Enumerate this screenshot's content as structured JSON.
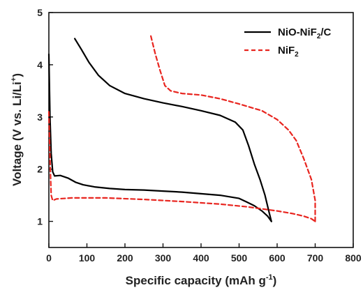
{
  "chart_data": {
    "type": "line",
    "title": "",
    "xlabel": "Specific capacity (mAh g^-1)",
    "ylabel": "Voltage (V vs. Li/Li^+)",
    "xlim": [
      0,
      800
    ],
    "ylim": [
      0.5,
      5
    ],
    "x_ticks": [
      0,
      100,
      200,
      300,
      400,
      500,
      600,
      700,
      800
    ],
    "y_ticks": [
      1,
      2,
      3,
      4,
      5
    ],
    "grid": false,
    "legend_position": "top-right",
    "series": [
      {
        "name": "NiO-NiF2/C",
        "color": "#000000",
        "dash": "solid",
        "segments": [
          [
            [
              0,
              4.2
            ],
            [
              3,
              3.0
            ],
            [
              6,
              2.3
            ],
            [
              10,
              1.95
            ],
            [
              15,
              1.87
            ],
            [
              30,
              1.88
            ],
            [
              50,
              1.83
            ],
            [
              70,
              1.75
            ],
            [
              90,
              1.7
            ],
            [
              120,
              1.66
            ],
            [
              160,
              1.63
            ],
            [
              200,
              1.61
            ],
            [
              250,
              1.6
            ],
            [
              300,
              1.58
            ],
            [
              350,
              1.56
            ],
            [
              400,
              1.53
            ],
            [
              450,
              1.5
            ],
            [
              500,
              1.44
            ],
            [
              520,
              1.37
            ],
            [
              540,
              1.3
            ],
            [
              560,
              1.2
            ],
            [
              575,
              1.1
            ],
            [
              585,
              1.0
            ]
          ],
          [
            [
              585,
              1.0
            ],
            [
              578,
              1.2
            ],
            [
              568,
              1.5
            ],
            [
              555,
              1.8
            ],
            [
              540,
              2.1
            ],
            [
              525,
              2.45
            ],
            [
              510,
              2.75
            ],
            [
              490,
              2.9
            ],
            [
              450,
              3.03
            ],
            [
              400,
              3.12
            ],
            [
              350,
              3.2
            ],
            [
              300,
              3.27
            ],
            [
              250,
              3.35
            ],
            [
              200,
              3.45
            ],
            [
              160,
              3.6
            ],
            [
              130,
              3.8
            ],
            [
              105,
              4.05
            ],
            [
              85,
              4.3
            ],
            [
              68,
              4.5
            ]
          ]
        ]
      },
      {
        "name": "NiF2",
        "color": "#e8251f",
        "dash": "dashed",
        "segments": [
          [
            [
              0,
              3.1
            ],
            [
              3,
              2.2
            ],
            [
              6,
              1.5
            ],
            [
              10,
              1.4
            ],
            [
              20,
              1.43
            ],
            [
              60,
              1.45
            ],
            [
              150,
              1.45
            ],
            [
              250,
              1.42
            ],
            [
              350,
              1.38
            ],
            [
              450,
              1.33
            ],
            [
              520,
              1.28
            ],
            [
              560,
              1.24
            ],
            [
              600,
              1.2
            ],
            [
              640,
              1.15
            ],
            [
              670,
              1.1
            ],
            [
              690,
              1.05
            ],
            [
              700,
              1.0
            ]
          ],
          [
            [
              700,
              1.0
            ],
            [
              700,
              1.4
            ],
            [
              690,
              1.8
            ],
            [
              670,
              2.2
            ],
            [
              650,
              2.55
            ],
            [
              630,
              2.75
            ],
            [
              600,
              2.95
            ],
            [
              560,
              3.12
            ],
            [
              500,
              3.25
            ],
            [
              450,
              3.35
            ],
            [
              400,
              3.42
            ],
            [
              350,
              3.45
            ],
            [
              320,
              3.5
            ],
            [
              305,
              3.6
            ],
            [
              292,
              3.9
            ],
            [
              280,
              4.2
            ],
            [
              268,
              4.55
            ]
          ]
        ]
      }
    ]
  },
  "axes": {
    "x_title": {
      "main": "Specific capacity (mAh g",
      "sup": "-1",
      "tail": ")"
    },
    "y_title": {
      "main": "Voltage (V vs. Li/Li",
      "sup": "+",
      "tail": ")"
    }
  },
  "legend": {
    "items": [
      {
        "main": "NiO-NiF",
        "sub": "2",
        "tail": "/C"
      },
      {
        "main": "NiF",
        "sub": "2",
        "tail": ""
      }
    ]
  }
}
